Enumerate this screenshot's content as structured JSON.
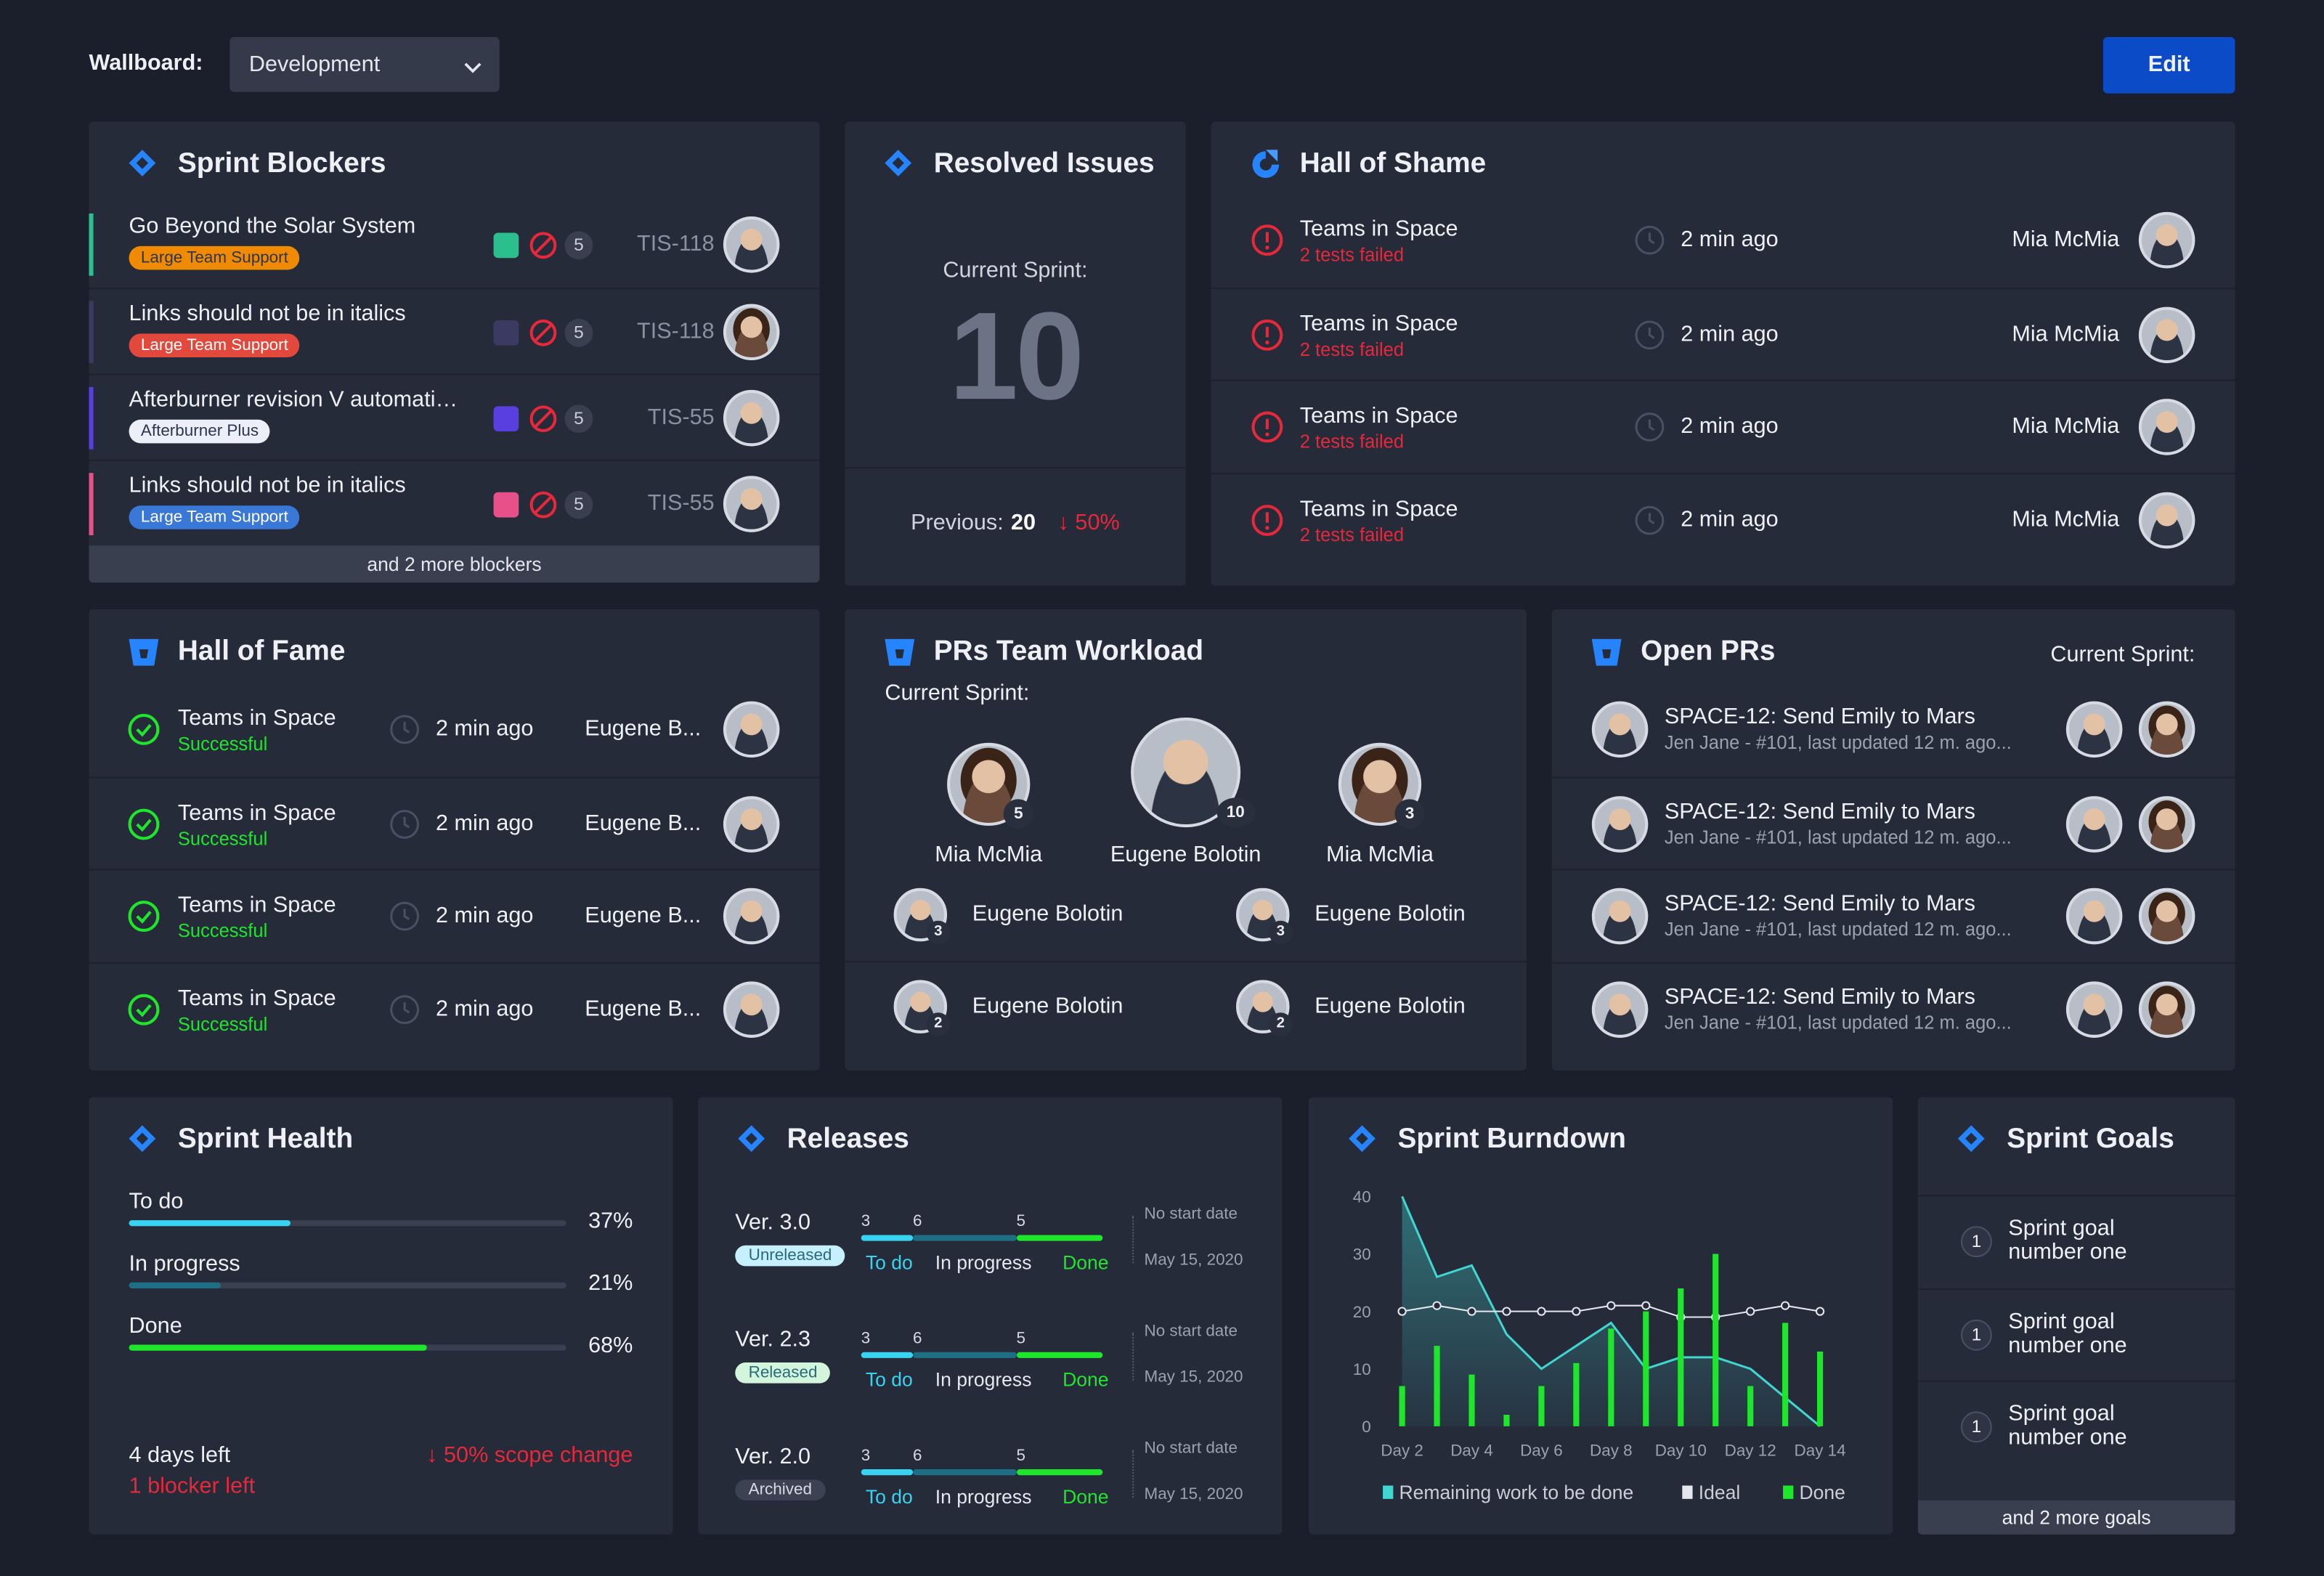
{
  "header": {
    "label": "Wallboard:",
    "dropdown": "Development",
    "button": "Edit"
  },
  "sprint_blockers": {
    "title": "Sprint Blockers",
    "items": [
      {
        "title": "Go Beyond the Solar System",
        "tag": "Large Team Support",
        "tag_color": "#f08a00",
        "accent": "#2bbf8e",
        "count": 5,
        "key": "TIS-118"
      },
      {
        "title": "Links should not be in italics",
        "tag": "Large Team Support",
        "tag_color": "#e2483c",
        "accent": "#3a3a62",
        "count": 5,
        "key": "TIS-118"
      },
      {
        "title": "Afterburner revision V automati…",
        "tag": "Afterburner Plus",
        "tag_color": "#eceef8",
        "accent": "#5a3fe0",
        "count": 5,
        "key": "TIS-55"
      },
      {
        "title": "Links should not be in italics",
        "tag": "Large Team Support",
        "tag_color": "#3a78d8",
        "accent": "#e8508a",
        "count": 5,
        "key": "TIS-55"
      }
    ],
    "footer": "and 2 more blockers"
  },
  "resolved_issues": {
    "title": "Resolved Issues",
    "label": "Current Sprint:",
    "value": 10,
    "previous_label": "Previous:",
    "previous": 20,
    "change": "↓ 50%"
  },
  "hall_of_shame": {
    "title": "Hall of Shame",
    "items": [
      {
        "name": "Teams in Space",
        "status": "2 tests failed",
        "time": "2 min ago",
        "user": "Mia McMia"
      },
      {
        "name": "Teams in Space",
        "status": "2 tests failed",
        "time": "2 min ago",
        "user": "Mia McMia"
      },
      {
        "name": "Teams in Space",
        "status": "2 tests failed",
        "time": "2 min ago",
        "user": "Mia McMia"
      },
      {
        "name": "Teams in Space",
        "status": "2 tests failed",
        "time": "2 min ago",
        "user": "Mia McMia"
      }
    ]
  },
  "hall_of_fame": {
    "title": "Hall of Fame",
    "items": [
      {
        "name": "Teams in Space",
        "status": "Successful",
        "time": "2 min ago",
        "user": "Eugene B..."
      },
      {
        "name": "Teams in Space",
        "status": "Successful",
        "time": "2 min ago",
        "user": "Eugene B..."
      },
      {
        "name": "Teams in Space",
        "status": "Successful",
        "time": "2 min ago",
        "user": "Eugene B..."
      },
      {
        "name": "Teams in Space",
        "status": "Successful",
        "time": "2 min ago",
        "user": "Eugene B..."
      }
    ]
  },
  "prs_workload": {
    "title": "PRs Team Workload",
    "subtitle": "Current Sprint:",
    "top": [
      {
        "name": "Mia McMia",
        "count": 5
      },
      {
        "name": "Eugene Bolotin",
        "count": 10
      },
      {
        "name": "Mia McMia",
        "count": 3
      }
    ],
    "others": [
      {
        "name": "Eugene Bolotin",
        "count": 3
      },
      {
        "name": "Eugene Bolotin",
        "count": 3
      },
      {
        "name": "Eugene Bolotin",
        "count": 2
      },
      {
        "name": "Eugene Bolotin",
        "count": 2
      }
    ]
  },
  "open_prs": {
    "title": "Open PRs",
    "subtitle": "Current Sprint:",
    "items": [
      {
        "title": "SPACE-12: Send Emily to Mars",
        "meta": "Jen Jane - #101, last updated 12 m. ago..."
      },
      {
        "title": "SPACE-12: Send Emily to Mars",
        "meta": "Jen Jane - #101, last updated 12 m. ago..."
      },
      {
        "title": "SPACE-12: Send Emily to Mars",
        "meta": "Jen Jane - #101, last updated 12 m. ago..."
      },
      {
        "title": "SPACE-12: Send Emily to Mars",
        "meta": "Jen Jane - #101, last updated 12 m. ago..."
      }
    ]
  },
  "sprint_health": {
    "title": "Sprint Health",
    "bars": [
      {
        "label": "To do",
        "value": 37,
        "value_label": "37%",
        "color": "#37d3f0"
      },
      {
        "label": "In progress",
        "value": 21,
        "value_label": "21%",
        "color": "#1e6f86"
      },
      {
        "label": "Done",
        "value": 68,
        "value_label": "68%",
        "color": "#1ee62b"
      }
    ],
    "days_left": "4 days left",
    "blockers": "1 blocker left",
    "scope": "↓ 50% scope change"
  },
  "releases": {
    "title": "Releases",
    "labels": [
      "To do",
      "In progress",
      "Done"
    ],
    "colors": [
      "#37d3f0",
      "#1e6f86",
      "#1ee62b"
    ],
    "items": [
      {
        "version": "Ver. 3.0",
        "status": "Unreleased",
        "status_color": "#c7f0ff",
        "todo": 3,
        "in_progress": 6,
        "done": 5,
        "start": "No start date",
        "end": "May 15, 2020"
      },
      {
        "version": "Ver. 2.3",
        "status": "Released",
        "status_color": "#d3f5dc",
        "todo": 3,
        "in_progress": 6,
        "done": 5,
        "start": "No start date",
        "end": "May 15, 2020"
      },
      {
        "version": "Ver. 2.0",
        "status": "Archived",
        "status_color": "#3d4253",
        "todo": 3,
        "in_progress": 6,
        "done": 5,
        "start": "No start date",
        "end": "May 15, 2020"
      }
    ]
  },
  "chart_data": {
    "type": "burndown",
    "title": "Sprint Burndown",
    "categories": [
      "Day 2",
      null,
      "Day 4",
      null,
      "Day 6",
      null,
      "Day 8",
      null,
      "Day 10",
      null,
      "Day 12",
      null,
      "Day 14"
    ],
    "series": [
      {
        "name": "Remaining work to be done",
        "color": "#3fd6d0",
        "type": "area",
        "values": [
          40,
          26,
          28,
          16,
          10,
          14,
          18,
          10,
          12,
          12,
          10,
          5,
          0
        ]
      },
      {
        "name": "Ideal",
        "color": "#e4e7ee",
        "type": "line",
        "values": [
          20,
          21,
          20,
          20,
          20,
          20,
          21,
          21,
          19,
          19,
          20,
          21,
          20
        ]
      },
      {
        "name": "Done",
        "color": "#1ee62b",
        "type": "bar",
        "values": [
          7,
          14,
          9,
          2,
          7,
          11,
          17,
          20,
          24,
          30,
          7,
          18,
          13
        ]
      }
    ],
    "ylim": [
      0,
      40
    ],
    "yticks": [
      0,
      10,
      20,
      30,
      40
    ],
    "grid": false
  },
  "sprint_goals": {
    "title": "Sprint Goals",
    "items": [
      {
        "number": 1,
        "text": "Sprint goal number one"
      },
      {
        "number": 1,
        "text": "Sprint goal number one"
      },
      {
        "number": 1,
        "text": "Sprint goal number one"
      }
    ],
    "footer": "and 2 more goals"
  }
}
